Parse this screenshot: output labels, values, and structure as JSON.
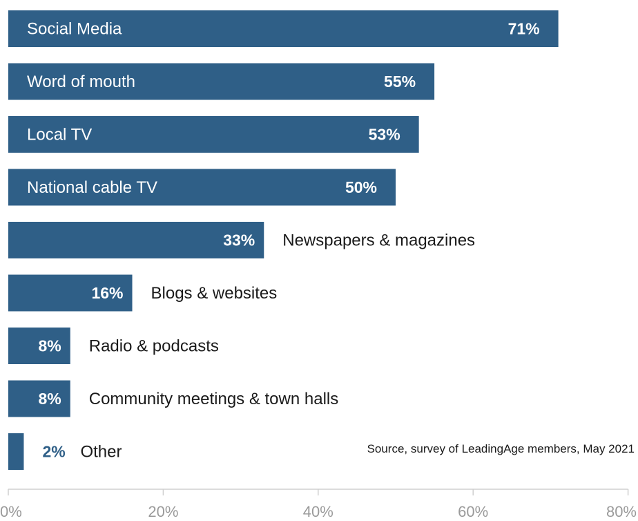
{
  "chart_data": {
    "type": "bar",
    "orientation": "horizontal",
    "categories": [
      "Social Media",
      "Word of mouth",
      "Local TV",
      "National cable TV",
      "Newspapers & magazines",
      "Blogs & websites",
      "Radio & podcasts",
      "Community meetings & town halls",
      "Other"
    ],
    "values": [
      71,
      55,
      53,
      50,
      33,
      16,
      8,
      8,
      2
    ],
    "value_labels": [
      "71%",
      "55%",
      "53%",
      "50%",
      "33%",
      "16%",
      "8%",
      "8%",
      "2%"
    ],
    "x_ticks": [
      "0%",
      "20%",
      "40%",
      "60%",
      "80%"
    ],
    "xlim": [
      0,
      80
    ],
    "grid": false,
    "colors": {
      "bar": "#2f5f87",
      "axis": "#cfcfcf",
      "tick_text": "#9a9a9a",
      "label_outside": "#1a1a1a"
    },
    "source": "Source, survey of LeadingAge members, May 2021"
  }
}
